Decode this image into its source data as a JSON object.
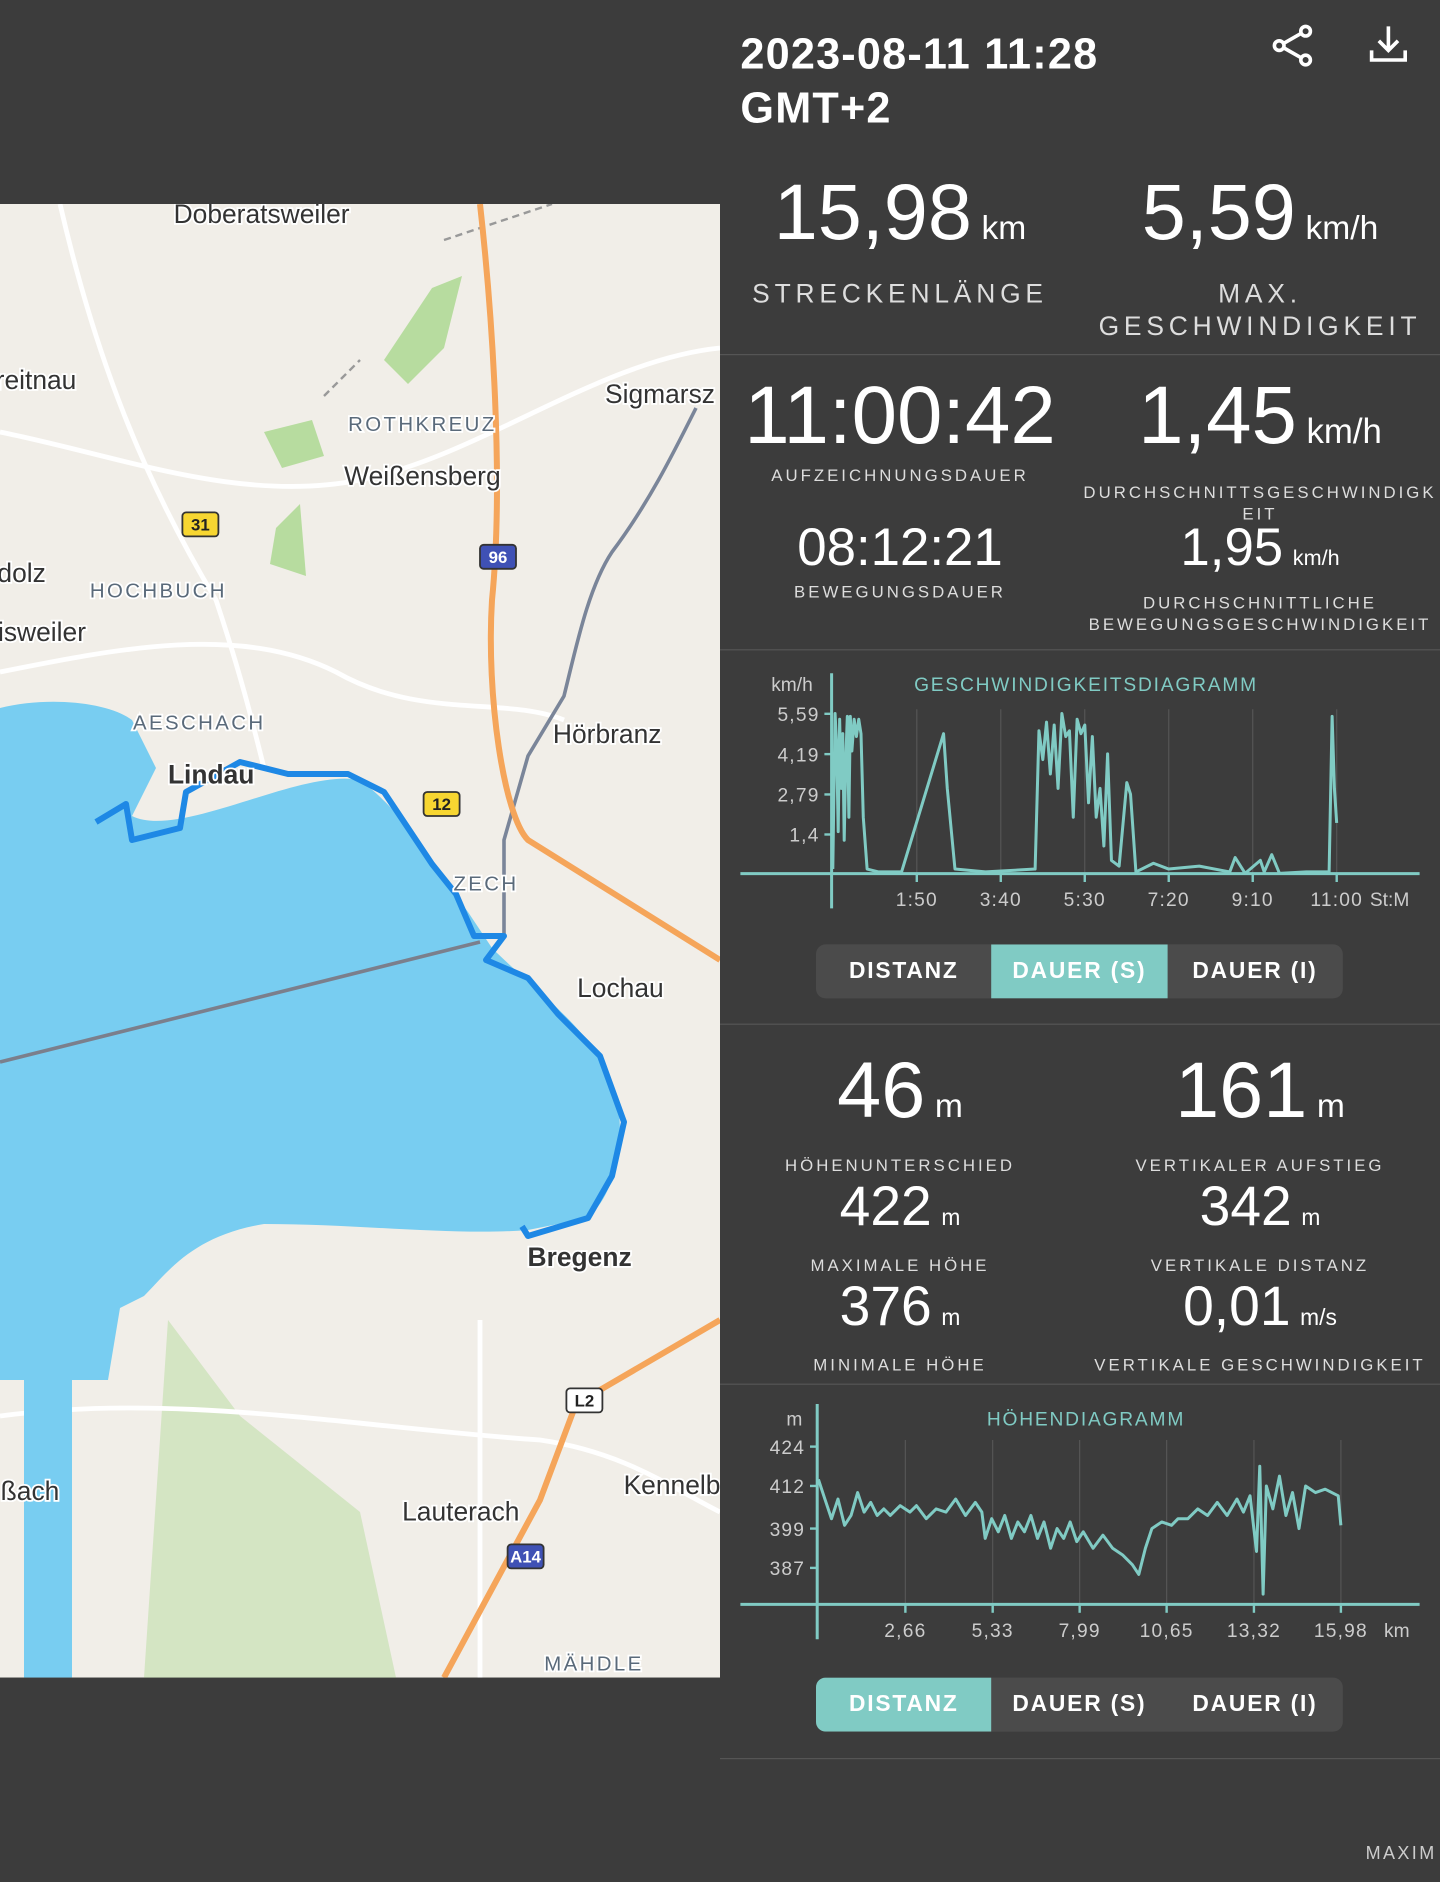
{
  "header": {
    "datetime": "2023-08-11 11:28",
    "timezone": "GMT+2"
  },
  "map": {
    "labels": [
      "Doberatsweiler",
      "reitnau",
      "ROTHKREUZ",
      "Weißensberg",
      "Sigmarsz",
      "31",
      "HOCHBUCH",
      "dolz",
      "96",
      "isweiler",
      "AESCHACH",
      "Lindau",
      "Hörbranz",
      "12",
      "ZECH",
      "Lochau",
      "Bregenz",
      "L2",
      "Kennelb",
      "ßach",
      "Lauterach",
      "A14",
      "MÄHDLE"
    ]
  },
  "stats": [
    {
      "value": "15,98",
      "unit": "km",
      "label": "STRECKENLÄNGE"
    },
    {
      "value": "5,59",
      "unit": "km/h",
      "label": "MAX. GESCHWINDIGKEIT"
    },
    {
      "value": "11:00:42",
      "label": "AUFZEICHNUNGSDAUER"
    },
    {
      "value": "1,45",
      "unit": "km/h",
      "label": "DURCHSCHNITTSGESCHWINDIGKEIT"
    },
    {
      "value": "08:12:21",
      "label": "BEWEGUNGSDAUER"
    },
    {
      "value": "1,95",
      "unit": "km/h",
      "label": "DURCHSCHNITTLICHE BEWEGUNGSGESCHWINDIGKEIT"
    },
    {
      "value": "46",
      "unit": "m",
      "label": "HÖHENUNTERSCHIED"
    },
    {
      "value": "161",
      "unit": "m",
      "label": "VERTIKALER AUFSTIEG"
    },
    {
      "value": "422",
      "unit": "m",
      "label": "MAXIMALE HÖHE"
    },
    {
      "value": "342",
      "unit": "m",
      "label": "VERTIKALE DISTANZ"
    },
    {
      "value": "376",
      "unit": "m",
      "label": "MINIMALE HÖHE"
    },
    {
      "value": "0,01",
      "unit": "m/s",
      "label": "VERTIKALE GESCHWINDIGKEIT"
    }
  ],
  "chart_data": [
    {
      "type": "line",
      "title": "GESCHWINDIGKEITSDIAGRAMM",
      "y_unit": "km/h",
      "x_unit": "St:M",
      "color": "#80cbc4",
      "xlim": [
        0,
        767
      ],
      "ylim": [
        0,
        7
      ],
      "xticks": [
        {
          "value": 110,
          "label": "1:50"
        },
        {
          "value": 220,
          "label": "3:40"
        },
        {
          "value": 330,
          "label": "5:30"
        },
        {
          "value": 440,
          "label": "7:20"
        },
        {
          "value": 550,
          "label": "9:10"
        },
        {
          "value": 660,
          "label": "11:00"
        }
      ],
      "yticks": [
        {
          "value": 5.59,
          "label": "5,59"
        },
        {
          "value": 4.19,
          "label": "4,19"
        },
        {
          "value": 2.79,
          "label": "2,79"
        },
        {
          "value": 1.4,
          "label": "1,4"
        }
      ],
      "x": [
        0,
        3,
        5,
        7,
        9,
        11,
        13,
        15,
        17,
        19,
        21,
        23,
        25,
        28,
        31,
        34,
        37,
        40,
        45,
        60,
        80,
        90,
        145,
        150,
        160,
        200,
        265,
        270,
        275,
        280,
        285,
        290,
        295,
        300,
        305,
        310,
        315,
        320,
        325,
        330,
        335,
        340,
        345,
        350,
        355,
        360,
        365,
        375,
        385,
        390,
        397,
        420,
        440,
        480,
        520,
        527,
        540,
        560,
        565,
        575,
        585,
        620,
        650,
        654,
        657,
        660
      ],
      "values": [
        0.2,
        5.6,
        4.5,
        1.5,
        5.4,
        3.0,
        4.9,
        1.2,
        4.0,
        5.5,
        2.0,
        5.5,
        4.3,
        5.4,
        4.8,
        5.4,
        4.9,
        2.0,
        0.2,
        0.1,
        0.1,
        0.1,
        4.9,
        3.0,
        0.2,
        0.1,
        0.2,
        5.0,
        4.0,
        5.3,
        3.5,
        5.2,
        3.0,
        5.6,
        4.8,
        5.0,
        2.0,
        5.4,
        4.9,
        5.2,
        2.5,
        4.8,
        2.0,
        3.0,
        1.0,
        4.2,
        0.5,
        0.3,
        3.2,
        2.8,
        0.1,
        0.4,
        0.2,
        0.3,
        0.1,
        0.6,
        0.05,
        0.5,
        0.1,
        0.7,
        0.05,
        0.1,
        0.1,
        5.5,
        3.0,
        1.8
      ]
    },
    {
      "type": "line",
      "title": "HÖHENDIAGRAMM",
      "y_unit": "m",
      "x_unit": "km",
      "color": "#80cbc4",
      "xlim": [
        0,
        18.35
      ],
      "ylim": [
        375.5,
        437
      ],
      "xticks": [
        {
          "value": 2.66,
          "label": "2,66"
        },
        {
          "value": 5.33,
          "label": "5,33"
        },
        {
          "value": 7.99,
          "label": "7,99"
        },
        {
          "value": 10.65,
          "label": "10,65"
        },
        {
          "value": 13.32,
          "label": "13,32"
        },
        {
          "value": 15.98,
          "label": "15,98"
        }
      ],
      "yticks": [
        424,
        412,
        399,
        387
      ],
      "x": [
        0,
        0.2,
        0.4,
        0.6,
        0.8,
        1,
        1.2,
        1.4,
        1.6,
        1.8,
        2,
        2.2,
        2.5,
        2.8,
        3,
        3.3,
        3.6,
        3.9,
        4.2,
        4.5,
        4.8,
        5,
        5.1,
        5.3,
        5.5,
        5.7,
        5.9,
        6.1,
        6.3,
        6.5,
        6.7,
        6.9,
        7.1,
        7.3,
        7.5,
        7.7,
        7.9,
        8.1,
        8.4,
        8.7,
        9,
        9.3,
        9.6,
        9.8,
        10,
        10.2,
        10.5,
        10.8,
        11,
        11.3,
        11.6,
        11.9,
        12.2,
        12.5,
        12.8,
        13,
        13.2,
        13.4,
        13.5,
        13.6,
        13.7,
        13.9,
        14.1,
        14.3,
        14.5,
        14.7,
        14.9,
        15.2,
        15.5,
        15.9,
        15.98
      ],
      "values": [
        414,
        408,
        402,
        408,
        400,
        403,
        410,
        404,
        407,
        403,
        405,
        403,
        406,
        404,
        406,
        402,
        405,
        404,
        408,
        403,
        407,
        404,
        396,
        402,
        398,
        403,
        396,
        401,
        398,
        403,
        396,
        401,
        393,
        399,
        396,
        401,
        395,
        398,
        393,
        397,
        393,
        391,
        388,
        385,
        393,
        399,
        401,
        400,
        402,
        402,
        405,
        403,
        407,
        403,
        408,
        404,
        409,
        392,
        418,
        379,
        412,
        405,
        415,
        403,
        410,
        399,
        412,
        410,
        411,
        409,
        400
      ]
    }
  ],
  "speed_tabs": {
    "options": [
      "DISTANZ",
      "DAUER (S)",
      "DAUER (I)"
    ],
    "selected": 1
  },
  "elevation_tabs": {
    "options": [
      "DISTANZ",
      "DAUER (S)",
      "DAUER (I)"
    ],
    "selected": 0
  },
  "footer": "MAXIM"
}
